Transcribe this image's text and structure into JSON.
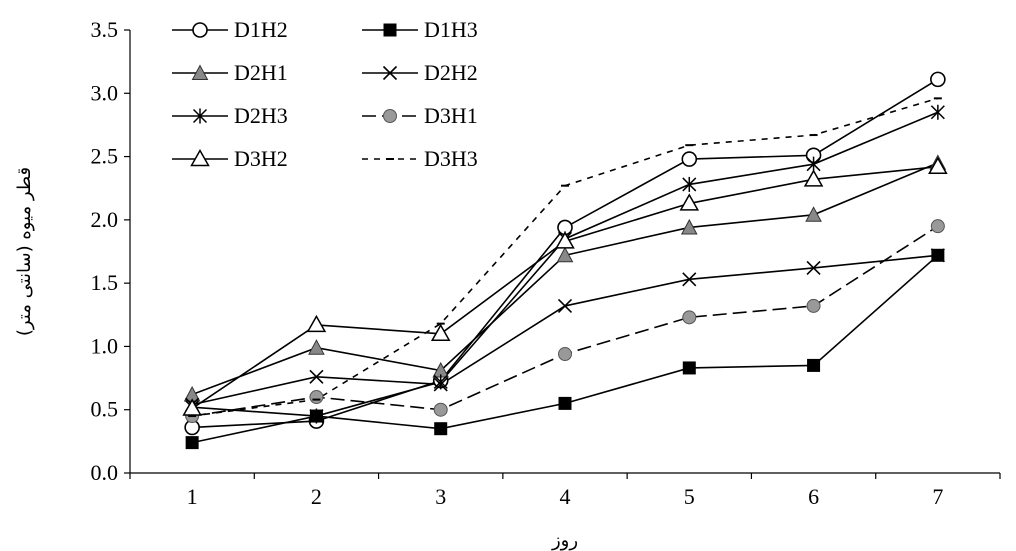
{
  "chart_data": {
    "type": "line",
    "xlabel": "روز",
    "ylabel": "قطر میوه (سانتی متر)",
    "categories": [
      "1",
      "2",
      "3",
      "4",
      "5",
      "6",
      "7"
    ],
    "ylim": [
      0,
      3.5
    ],
    "yticks": [
      "0.0",
      "0.5",
      "1.0",
      "1.5",
      "2.0",
      "2.5",
      "3.0",
      "3.5"
    ],
    "grid": false,
    "legend_position": "top-left",
    "series": [
      {
        "name": "D1H2",
        "marker": "circle-open",
        "dash": "solid",
        "values": [
          0.36,
          0.41,
          0.73,
          1.94,
          2.48,
          2.51,
          3.11
        ]
      },
      {
        "name": "D1H3",
        "marker": "square-filled",
        "dash": "solid",
        "values": [
          0.24,
          0.45,
          0.35,
          0.55,
          0.83,
          0.85,
          1.72
        ]
      },
      {
        "name": "D2H1",
        "marker": "triangle-gray",
        "dash": "solid",
        "values": [
          0.62,
          0.99,
          0.81,
          1.72,
          1.94,
          2.04,
          2.45
        ]
      },
      {
        "name": "D2H2",
        "marker": "x",
        "dash": "solid",
        "values": [
          0.54,
          0.76,
          0.7,
          1.32,
          1.53,
          1.62,
          1.72
        ]
      },
      {
        "name": "D2H3",
        "marker": "star",
        "dash": "solid",
        "values": [
          0.52,
          0.45,
          0.72,
          1.85,
          2.28,
          2.44,
          2.85
        ]
      },
      {
        "name": "D3H1",
        "marker": "circle-gray",
        "dash": "longdash",
        "values": [
          0.45,
          0.6,
          0.5,
          0.94,
          1.23,
          1.32,
          1.95
        ]
      },
      {
        "name": "D3H2",
        "marker": "triangle-open",
        "dash": "solid",
        "values": [
          0.51,
          1.17,
          1.1,
          1.83,
          2.13,
          2.32,
          2.42
        ]
      },
      {
        "name": "D3H3",
        "marker": "dash",
        "dash": "shortdash",
        "values": [
          0.45,
          0.58,
          1.18,
          2.27,
          2.59,
          2.67,
          2.96
        ]
      }
    ]
  }
}
